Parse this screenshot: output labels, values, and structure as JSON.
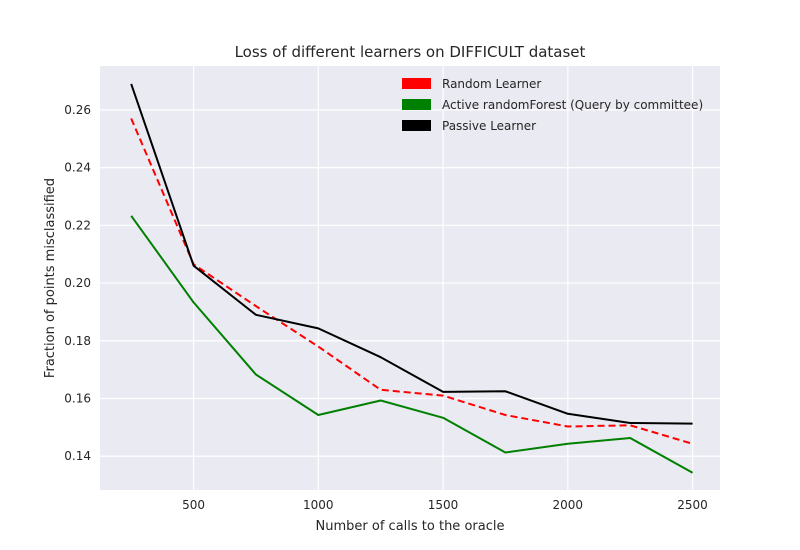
{
  "chart_data": {
    "type": "line",
    "title": "Loss of different learners on DIFFICULT dataset",
    "xlabel": "Number of calls to the oracle",
    "ylabel": "Fraction of points misclassified",
    "x": [
      250,
      500,
      750,
      1000,
      1250,
      1500,
      1750,
      2000,
      2250,
      2500
    ],
    "xlim": [
      125,
      2610
    ],
    "ylim": [
      0.1283,
      0.2752
    ],
    "xticks": [
      500,
      1000,
      1500,
      2000,
      2500
    ],
    "yticks": [
      0.14,
      0.16,
      0.18,
      0.2,
      0.22,
      0.24,
      0.26
    ],
    "grid": true,
    "legend_position": "top-right",
    "background": "#eaeaf2",
    "series": [
      {
        "name": "Random Learner",
        "color": "#ff0000",
        "dashed": true,
        "values": [
          0.257,
          0.2065,
          0.192,
          0.178,
          0.163,
          0.161,
          0.1543,
          0.1503,
          0.1507,
          0.1443
        ]
      },
      {
        "name": "Active randomForest (Query by committee)",
        "color": "#008000",
        "dashed": false,
        "values": [
          0.2233,
          0.1933,
          0.1683,
          0.1543,
          0.1593,
          0.1533,
          0.1413,
          0.1443,
          0.1463,
          0.1343
        ]
      },
      {
        "name": "Passive Learner",
        "color": "#000000",
        "dashed": false,
        "values": [
          0.269,
          0.206,
          0.189,
          0.1843,
          0.1743,
          0.1623,
          0.1625,
          0.1547,
          0.1515,
          0.1513
        ]
      }
    ]
  }
}
